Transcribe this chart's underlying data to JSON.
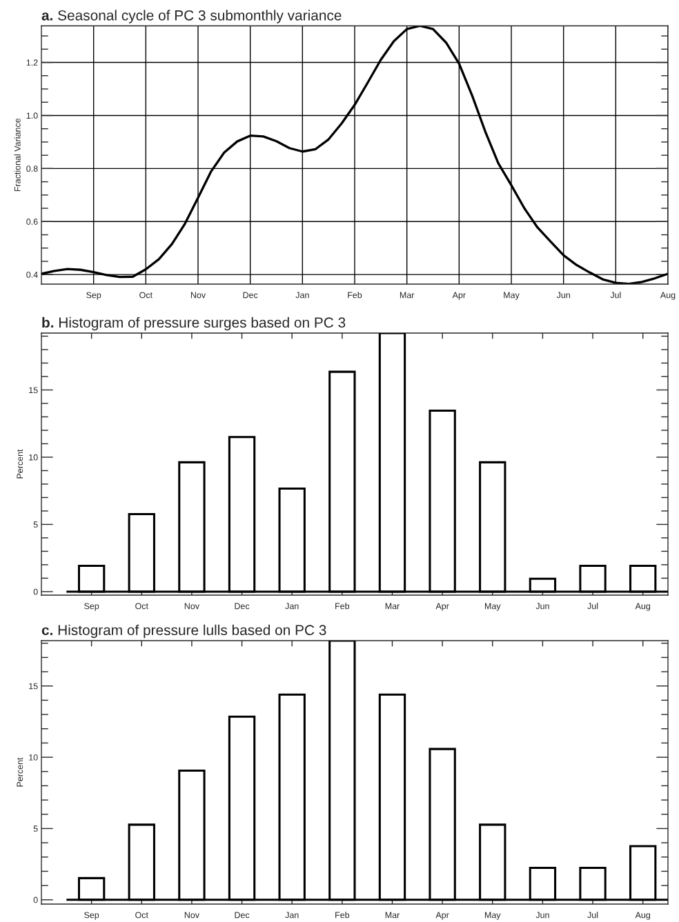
{
  "chart_data": [
    {
      "type": "line",
      "title": "a. Seasonal cycle of PC 3 submonthly variance",
      "ylabel": "Fractional Variance",
      "categories": [
        null,
        null,
        null,
        null,
        "Sep",
        null,
        null,
        null,
        "Oct",
        null,
        null,
        null,
        "Nov",
        null,
        null,
        null,
        "Dec",
        null,
        null,
        null,
        "Jan",
        null,
        null,
        null,
        "Feb",
        null,
        null,
        null,
        "Mar",
        null,
        null,
        null,
        "Apr",
        null,
        null,
        null,
        "May",
        null,
        null,
        null,
        "Jun",
        null,
        null,
        null,
        "Jul",
        null,
        null,
        null,
        "Aug"
      ],
      "series": [
        {
          "color": "#000000",
          "values": [
            0.403,
            0.414,
            0.421,
            0.418,
            0.409,
            0.398,
            0.391,
            0.392,
            0.42,
            0.458,
            0.515,
            0.592,
            0.69,
            0.789,
            0.86,
            0.902,
            0.924,
            0.921,
            0.903,
            0.877,
            0.864,
            0.873,
            0.91,
            0.97,
            1.04,
            1.124,
            1.21,
            1.28,
            1.326,
            1.338,
            1.326,
            1.275,
            1.195,
            1.075,
            0.94,
            0.82,
            0.737,
            0.65,
            0.578,
            0.525,
            0.473,
            0.436,
            0.408,
            0.382,
            0.369,
            0.365,
            0.372,
            0.386,
            0.403
          ]
        }
      ],
      "ylim": [
        0.364,
        1.338
      ],
      "yticks": [
        {
          "value": 0.4,
          "label": "0.4"
        },
        {
          "value": 0.45,
          "label": null
        },
        {
          "value": 0.5,
          "label": null
        },
        {
          "value": 0.55,
          "label": null
        },
        {
          "value": 0.6,
          "label": "0.6"
        },
        {
          "value": 0.65,
          "label": null
        },
        {
          "value": 0.7,
          "label": null
        },
        {
          "value": 0.75,
          "label": null
        },
        {
          "value": 0.8,
          "label": "0.8"
        },
        {
          "value": 0.85,
          "label": null
        },
        {
          "value": 0.9,
          "label": null
        },
        {
          "value": 0.95,
          "label": null
        },
        {
          "value": 1.0,
          "label": "1.0"
        },
        {
          "value": 1.05,
          "label": null
        },
        {
          "value": 1.1,
          "label": null
        },
        {
          "value": 1.15,
          "label": null
        },
        {
          "value": 1.2,
          "label": "1.2"
        },
        {
          "value": 1.25,
          "label": null
        },
        {
          "value": 1.3,
          "label": null
        }
      ],
      "grid": true,
      "legend": false
    },
    {
      "type": "bar",
      "title": "b. Histogram of pressure surges based on PC 3",
      "ylabel": "Percent",
      "categories": [
        "Sep",
        "Oct",
        "Nov",
        "Dec",
        "Jan",
        "Feb",
        "Mar",
        "Apr",
        "May",
        "Jun",
        "Jul",
        "Aug"
      ],
      "series": [
        {
          "color": "#000000",
          "values": [
            1.92,
            5.77,
            9.62,
            11.5,
            7.66,
            16.35,
            19.23,
            13.46,
            9.62,
            0.96,
            1.92,
            1.92
          ]
        }
      ],
      "ylim": [
        -0.26,
        19.23
      ],
      "yticks": [
        0,
        {
          "value": 1,
          "label": null
        },
        {
          "value": 2,
          "label": null
        },
        {
          "value": 3,
          "label": null
        },
        {
          "value": 4,
          "label": null
        },
        5,
        {
          "value": 6,
          "label": null
        },
        {
          "value": 7,
          "label": null
        },
        {
          "value": 8,
          "label": null
        },
        {
          "value": 9,
          "label": null
        },
        10,
        {
          "value": 11,
          "label": null
        },
        {
          "value": 12,
          "label": null
        },
        {
          "value": 13,
          "label": null
        },
        {
          "value": 14,
          "label": null
        },
        15,
        {
          "value": 16,
          "label": null
        },
        {
          "value": 17,
          "label": null
        },
        {
          "value": 18,
          "label": null
        },
        {
          "value": 19,
          "label": null
        }
      ],
      "ref_lines": [
        {
          "axis": "y",
          "value": 0,
          "color": "#000000"
        }
      ],
      "grid": false,
      "legend": false
    },
    {
      "type": "bar",
      "title": "c. Histogram of pressure lulls based on PC 3",
      "ylabel": "Percent",
      "categories": [
        "Sep",
        "Oct",
        "Nov",
        "Dec",
        "Jan",
        "Feb",
        "Mar",
        "Apr",
        "May",
        "Jun",
        "Jul",
        "Aug"
      ],
      "series": [
        {
          "color": "#000000",
          "values": [
            1.52,
            5.27,
            9.06,
            12.85,
            14.39,
            18.18,
            14.39,
            10.58,
            5.27,
            2.24,
            2.24,
            3.76
          ]
        }
      ],
      "ylim": [
        -0.3,
        18.18
      ],
      "yticks": [
        0,
        {
          "value": 1,
          "label": null
        },
        {
          "value": 2,
          "label": null
        },
        {
          "value": 3,
          "label": null
        },
        {
          "value": 4,
          "label": null
        },
        5,
        {
          "value": 6,
          "label": null
        },
        {
          "value": 7,
          "label": null
        },
        {
          "value": 8,
          "label": null
        },
        {
          "value": 9,
          "label": null
        },
        10,
        {
          "value": 11,
          "label": null
        },
        {
          "value": 12,
          "label": null
        },
        {
          "value": 13,
          "label": null
        },
        {
          "value": 14,
          "label": null
        },
        15,
        {
          "value": 16,
          "label": null
        },
        {
          "value": 17,
          "label": null
        },
        {
          "value": 18,
          "label": null
        }
      ],
      "ref_lines": [
        {
          "axis": "y",
          "value": 0,
          "color": "#000000"
        }
      ],
      "grid": false,
      "legend": false
    }
  ]
}
